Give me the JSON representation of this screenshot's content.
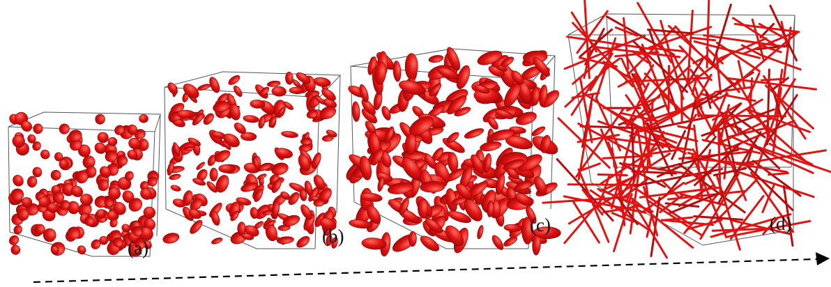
{
  "panels": [
    {
      "label": "(a)",
      "particle_shape": "sphere",
      "color": "#e01313"
    },
    {
      "label": "(b)",
      "particle_shape": "oblate-disk",
      "color": "#e01313"
    },
    {
      "label": "(c)",
      "particle_shape": "prolate-ellipsoid",
      "color": "#e01313"
    },
    {
      "label": "(d)",
      "particle_shape": "rod",
      "color": "#e01313"
    }
  ],
  "arrow": {
    "style": "dashed",
    "direction": "right",
    "color": "#000000"
  },
  "colors": {
    "particle": "#e01313",
    "particle_dark": "#9c0808",
    "particle_light": "#ff5a4a",
    "box_edge": "#555555"
  }
}
